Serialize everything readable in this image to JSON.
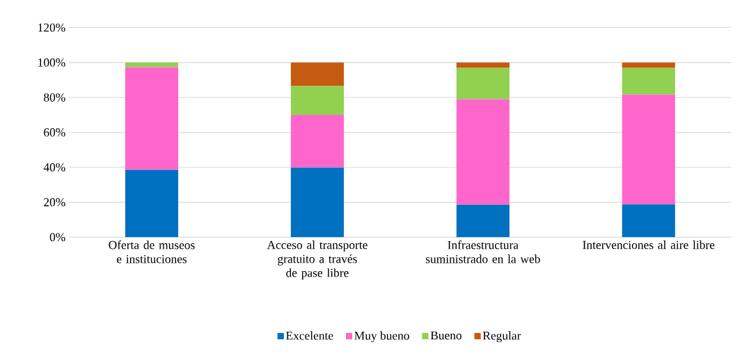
{
  "chart_data": {
    "type": "bar",
    "stacked": true,
    "grid": "y",
    "legend": "bottom",
    "categories": [
      "Oferta de museos e instituciones",
      "Acceso al transporte gratuito a través de pase libre",
      "Infraestructura suministrado en la web",
      "Intervenciones al aire libre"
    ],
    "series": [
      {
        "name": "Excelente",
        "color": "#0070c0",
        "values": [
          38.5,
          39.8,
          18.6,
          18.8
        ]
      },
      {
        "name": "Muy bueno",
        "color": "#ff66cc",
        "values": [
          58.8,
          30.2,
          60.3,
          62.8
        ]
      },
      {
        "name": "Bueno",
        "color": "#92d050",
        "values": [
          2.7,
          16.5,
          18.0,
          15.3
        ]
      },
      {
        "name": "Regular",
        "color": "#c55a11",
        "values": [
          0,
          13.5,
          3.1,
          3.1
        ]
      }
    ],
    "ylim": [
      0,
      120
    ],
    "yticks": [
      {
        "value": 0,
        "label": "0%"
      },
      {
        "value": 20,
        "label": "20%"
      },
      {
        "value": 40,
        "label": "40%"
      },
      {
        "value": 60,
        "label": "60%"
      },
      {
        "value": 80,
        "label": "80%"
      },
      {
        "value": 100,
        "label": "100%"
      },
      {
        "value": 120,
        "label": "120%"
      }
    ]
  }
}
